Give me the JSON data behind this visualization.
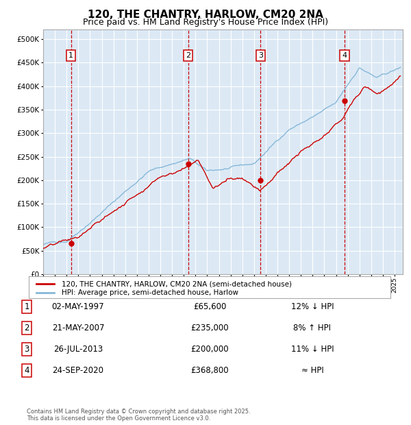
{
  "title": "120, THE CHANTRY, HARLOW, CM20 2NA",
  "subtitle": "Price paid vs. HM Land Registry's House Price Index (HPI)",
  "legend_label_red": "120, THE CHANTRY, HARLOW, CM20 2NA (semi-detached house)",
  "legend_label_blue": "HPI: Average price, semi-detached house, Harlow",
  "footer": "Contains HM Land Registry data © Crown copyright and database right 2025.\nThis data is licensed under the Open Government Licence v3.0.",
  "sale_points": [
    {
      "num": 1,
      "date": "02-MAY-1997",
      "price": 65600,
      "note": "12% ↓ HPI",
      "x_year": 1997.37
    },
    {
      "num": 2,
      "date": "21-MAY-2007",
      "price": 235000,
      "note": "8% ↑ HPI",
      "x_year": 2007.38
    },
    {
      "num": 3,
      "date": "26-JUL-2013",
      "price": 200000,
      "note": "11% ↓ HPI",
      "x_year": 2013.56
    },
    {
      "num": 4,
      "date": "24-SEP-2020",
      "price": 368800,
      "note": "≈ HPI",
      "x_year": 2020.73
    }
  ],
  "ylim": [
    0,
    520000
  ],
  "xlim_start": 1995.0,
  "xlim_end": 2025.7,
  "background_color": "#dce9f5",
  "grid_color": "#ffffff",
  "red_line_color": "#cc0000",
  "blue_line_color": "#87b8d8",
  "dashed_color": "#cc0000",
  "title_fontsize": 11,
  "subtitle_fontsize": 9
}
